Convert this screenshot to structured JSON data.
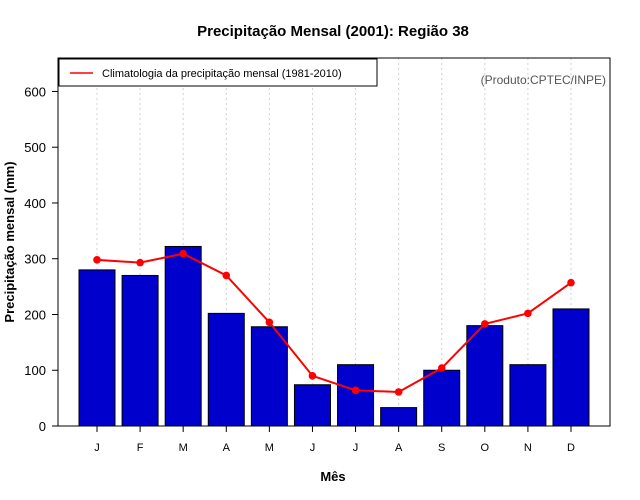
{
  "colors": {
    "bar_fill": "#0000cc",
    "bar_stroke": "#000000",
    "climatology_line": "#ff0000",
    "grid": "#d0d0d0",
    "credit_text": "#555555"
  },
  "chart_data": {
    "type": "bar",
    "title": "Precipitação Mensal (2001): Região 38",
    "xlabel": "Mês",
    "ylabel": "Precipitação mensal (mm)",
    "ylim": [
      0,
      660
    ],
    "yticks": [
      0,
      100,
      200,
      300,
      400,
      500,
      600
    ],
    "grid": "vertical dotted",
    "categories": [
      "J",
      "F",
      "M",
      "A",
      "M",
      "J",
      "J",
      "A",
      "S",
      "O",
      "N",
      "D"
    ],
    "series": [
      {
        "name": "Precipitação mensal 2001",
        "type": "bar",
        "values": [
          280,
          270,
          322,
          202,
          178,
          74,
          110,
          33,
          100,
          180,
          110,
          210
        ]
      },
      {
        "name": "Climatologia da precipitação mensal (1981-2010)",
        "type": "line",
        "values": [
          298,
          293,
          309,
          270,
          186,
          90,
          64,
          61,
          104,
          183,
          202,
          257
        ]
      }
    ],
    "legend": {
      "placement": "top-left",
      "entries": [
        "Climatologia da precipitação mensal (1981-2010)"
      ]
    },
    "annotation": "(Produto:CPTEC/INPE)"
  }
}
